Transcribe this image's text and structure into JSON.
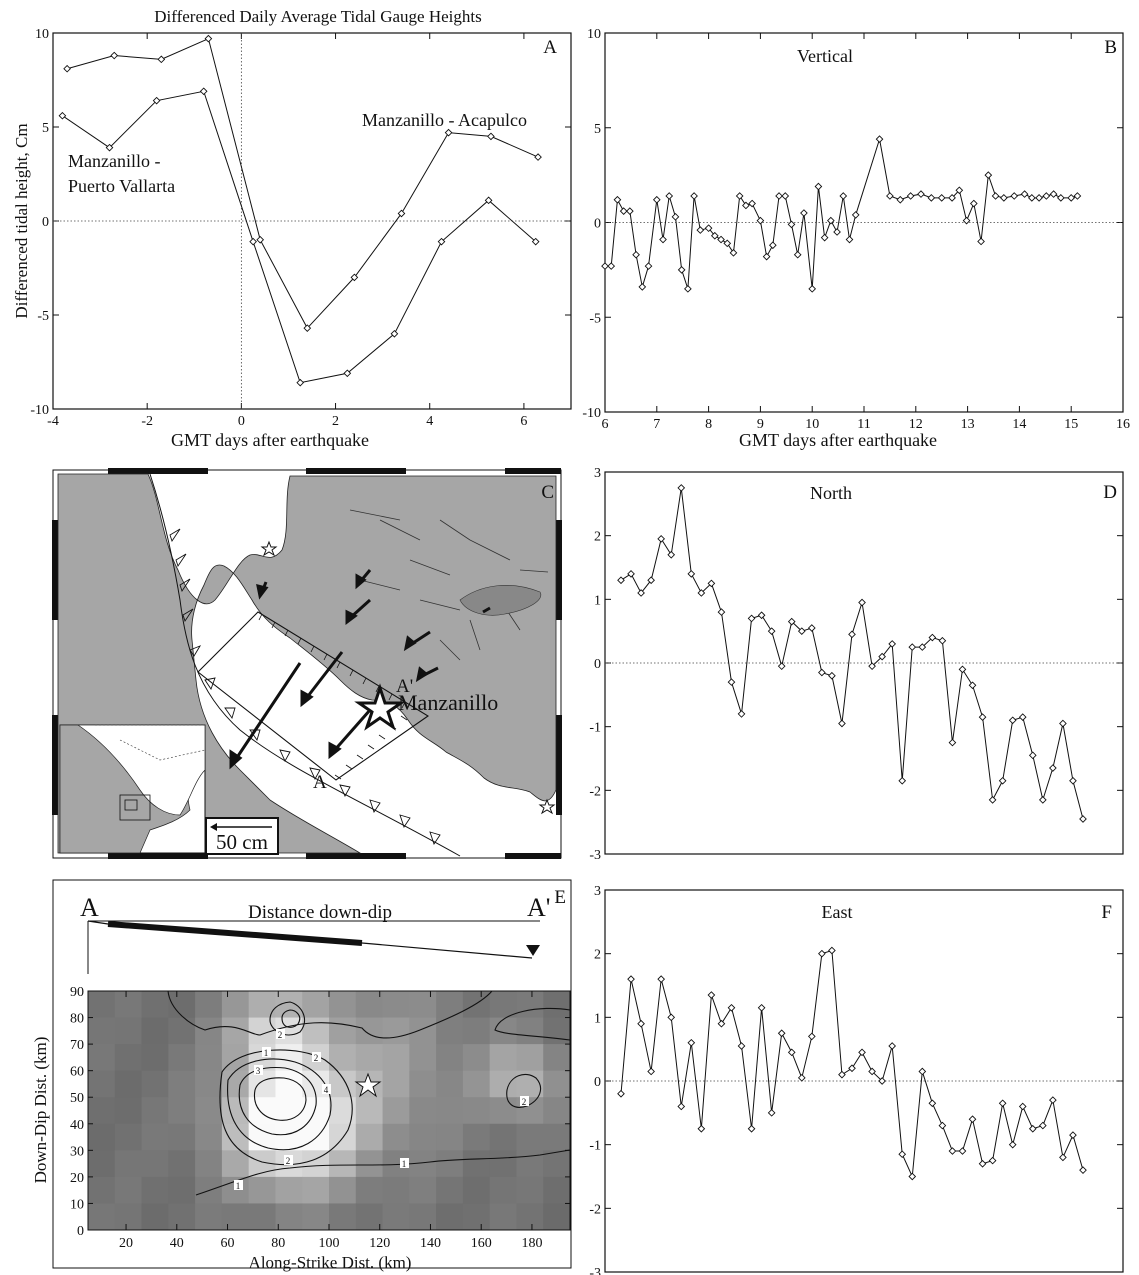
{
  "chart_data": [
    {
      "panel": "A",
      "type": "line",
      "title": "Differenced Daily Average Tidal Gauge Heights",
      "xlabel": "GMT days after earthquake",
      "ylabel": "Differenced tidal height, Cm",
      "xlim": [
        -4,
        7
      ],
      "ylim": [
        -10,
        10
      ],
      "xticks": [
        "-4",
        "-2",
        "0",
        "2",
        "4",
        "6"
      ],
      "yticks": [
        "10",
        "5",
        "0",
        "-5",
        "-10"
      ],
      "series": [
        {
          "name": "Manzanillo - Acapulco",
          "x": [
            -3.7,
            -2.7,
            -1.7,
            -0.7,
            0.4,
            1.4,
            2.4,
            3.4,
            4.4,
            5.3,
            6.3
          ],
          "y": [
            8.1,
            8.8,
            8.6,
            9.7,
            -1.0,
            -5.7,
            -3.0,
            0.4,
            4.7,
            4.5,
            3.4
          ]
        },
        {
          "name": "Manzanillo - Puerto Vallarta",
          "x": [
            -3.8,
            -2.8,
            -1.8,
            -0.8,
            0.25,
            1.25,
            2.25,
            3.25,
            4.25,
            5.25,
            6.25
          ],
          "y": [
            5.6,
            3.9,
            6.4,
            6.9,
            -1.1,
            -8.6,
            -8.1,
            -6.0,
            -1.1,
            1.1,
            -1.1
          ]
        }
      ],
      "annotations": [
        "Manzanillo - Acapulco",
        "Manzanillo -",
        "Puerto Vallarta"
      ],
      "label": "A"
    },
    {
      "panel": "B",
      "type": "line",
      "title": "Vertical",
      "xlabel": "GMT days after earthquake",
      "xlim": [
        6,
        16
      ],
      "ylim": [
        -10,
        10
      ],
      "xticks": [
        "6",
        "7",
        "8",
        "9",
        "10",
        "11",
        "12",
        "13",
        "14",
        "15",
        "16"
      ],
      "yticks": [
        "10",
        "5",
        "0",
        "-5",
        "-10"
      ],
      "series": [
        {
          "x": [
            6.0,
            6.12,
            6.24,
            6.36,
            6.48,
            6.6,
            6.72,
            6.84,
            7.0,
            7.12,
            7.24,
            7.36,
            7.48,
            7.6,
            7.72,
            7.84,
            8.0,
            8.12,
            8.24,
            8.36,
            8.48,
            8.6,
            8.72,
            8.84,
            9.0,
            9.12,
            9.24,
            9.36,
            9.48,
            9.6,
            9.72,
            9.84,
            10.0,
            10.12,
            10.24,
            10.36,
            10.48,
            10.6,
            10.72,
            10.84,
            11.3,
            11.5,
            11.7,
            11.9,
            12.1,
            12.3,
            12.5,
            12.7,
            12.84,
            12.98,
            13.12,
            13.26,
            13.4,
            13.54,
            13.7,
            13.9,
            14.1,
            14.24,
            14.38,
            14.52,
            14.66,
            14.8,
            15.0,
            15.12
          ],
          "y": [
            -2.3,
            -2.3,
            1.2,
            0.6,
            0.6,
            -1.7,
            -3.4,
            -2.3,
            1.2,
            -0.9,
            1.4,
            0.3,
            -2.5,
            -3.5,
            1.4,
            -0.4,
            -0.3,
            -0.7,
            -0.9,
            -1.1,
            -1.6,
            1.4,
            0.9,
            1.0,
            0.1,
            -1.8,
            -1.2,
            1.4,
            1.4,
            -0.1,
            -1.7,
            0.5,
            -3.5,
            1.9,
            -0.8,
            0.1,
            -0.5,
            1.4,
            -0.9,
            0.4,
            4.4,
            1.4,
            1.2,
            1.4,
            1.5,
            1.3,
            1.3,
            1.3,
            1.7,
            0.1,
            1.0,
            -1.0,
            2.5,
            1.4,
            1.3,
            1.4,
            1.5,
            1.3,
            1.3,
            1.4,
            1.5,
            1.3,
            1.3,
            1.4
          ]
        }
      ],
      "label": "B"
    },
    {
      "panel": "D",
      "type": "line",
      "title": "North",
      "ylim": [
        -3,
        3
      ],
      "yticks": [
        "3",
        "2",
        "1",
        "0",
        "-1",
        "-2",
        "-3"
      ],
      "series": [
        {
          "y": [
            1.3,
            1.4,
            1.1,
            1.3,
            1.95,
            1.7,
            2.75,
            1.4,
            1.1,
            1.25,
            0.8,
            -0.3,
            -0.8,
            0.7,
            0.75,
            0.5,
            -0.05,
            0.65,
            0.5,
            0.55,
            -0.15,
            -0.2,
            -0.95,
            0.45,
            0.95,
            -0.05,
            0.1,
            0.3,
            -1.85,
            0.25,
            0.25,
            0.4,
            0.35,
            -1.25,
            -0.1,
            -0.35,
            -0.85,
            -2.15,
            -1.85,
            -0.9,
            -0.85,
            -1.45,
            -2.15,
            -1.65,
            -0.95,
            -1.85,
            -2.45
          ]
        }
      ],
      "label": "D"
    },
    {
      "panel": "F",
      "type": "line",
      "title": "East",
      "ylim": [
        -3,
        3
      ],
      "yticks": [
        "3",
        "2",
        "1",
        "0",
        "-1",
        "-2",
        "-3"
      ],
      "series": [
        {
          "y": [
            -0.2,
            1.6,
            0.9,
            0.15,
            1.6,
            1.0,
            -0.4,
            0.6,
            -0.75,
            1.35,
            0.9,
            1.15,
            0.55,
            -0.75,
            1.15,
            -0.5,
            0.75,
            0.45,
            0.05,
            0.7,
            2.0,
            2.05,
            0.1,
            0.2,
            0.45,
            0.15,
            0.0,
            0.55,
            -1.15,
            -1.5,
            0.15,
            -0.35,
            -0.7,
            -1.1,
            -1.1,
            -0.6,
            -1.3,
            -1.25,
            -0.35,
            -1.0,
            -0.4,
            -0.75,
            -0.7,
            -0.3,
            -1.2,
            -0.85,
            -1.4
          ]
        }
      ],
      "label": "F"
    },
    {
      "panel": "E",
      "type": "heatmap",
      "xlabel": "Along-Strike Dist. (km)",
      "ylabel": "Down-Dip Dist. (km)",
      "xticks": [
        "20",
        "40",
        "60",
        "80",
        "100",
        "120",
        "140",
        "160",
        "180"
      ],
      "yticks": [
        "90",
        "80",
        "70",
        "60",
        "50",
        "40",
        "30",
        "20",
        "10",
        "0"
      ],
      "cross_section_title": "Distance down-dip",
      "end_labels": [
        "A",
        "A'"
      ],
      "contour_labels": [
        "1",
        "2",
        "3",
        "4",
        "2",
        "1",
        "2",
        "1",
        "2"
      ],
      "label": "E"
    }
  ],
  "map": {
    "label": "C",
    "city": "Manzanillo",
    "profile_labels": [
      "A",
      "A'"
    ],
    "scale_label": "50 cm"
  }
}
